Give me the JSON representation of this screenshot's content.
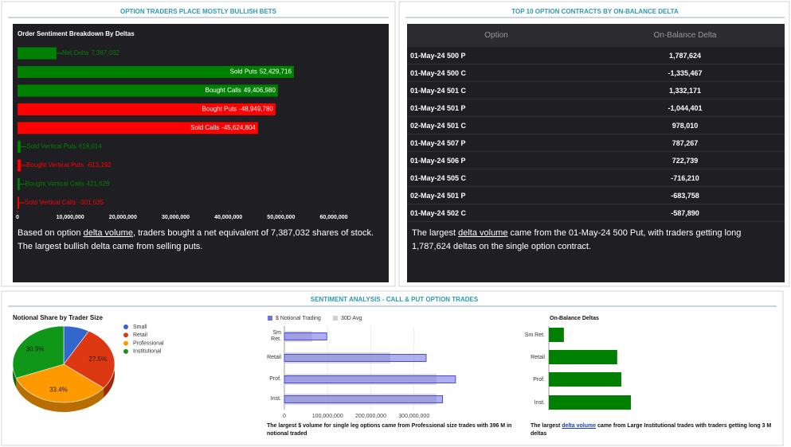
{
  "panel_titles": [
    "OPTION TRADERS PLACE MOSTLY BULLISH BETS",
    "TOP 10 OPTION CONTRACTS BY ON-BALANCE DELTA",
    "SENTIMENT ANALYSIS - CALL & PUT OPTION TRADES"
  ],
  "chart_data": [
    {
      "type": "bar",
      "title": "Order Sentiment Breakdown By Deltas",
      "categories": [
        "Net Delta",
        "Sold Puts",
        "Bought Calls",
        "Bought Puts",
        "Sold Calls",
        "Sold Vertical Puts",
        "Bought Vertical Puts",
        "Bought Vertical Calls",
        "Sold Vertical Calls"
      ],
      "values": [
        7387032,
        52429716,
        49406980,
        -48949780,
        -45624804,
        618014,
        -613192,
        421628,
        -301535
      ],
      "value_labels": [
        "7,387,032",
        "52,429,716",
        "49,406,980",
        "-48,949,780",
        "-45,624,804",
        "618,014",
        "-613,192",
        "421,628",
        "-301,535"
      ],
      "colors": [
        "#008000",
        "#008000",
        "#008000",
        "#ff0000",
        "#ff0000",
        "#008000",
        "#ff0000",
        "#008000",
        "#ff0000"
      ],
      "xlim": [
        0,
        60000000
      ],
      "xticks": [
        0,
        {
          "value": 10000000,
          "label": "10,000,000"
        },
        {
          "value": 20000000,
          "label": "20,000,000"
        },
        {
          "value": 30000000,
          "label": "30,000,000"
        },
        {
          "value": 40000000,
          "label": "40,000,000"
        },
        {
          "value": 50000000,
          "label": "50,000,000"
        },
        {
          "value": 60000000,
          "label": "60,000,000"
        }
      ]
    },
    {
      "type": "pie",
      "title": "Notional Share by Trader Size",
      "categories": [
        "Small",
        "Retail",
        "Professional",
        "Institutional"
      ],
      "values": [
        8.2,
        27.5,
        33.4,
        30.9
      ],
      "value_labels": [
        null,
        "27.5%",
        "33.4%",
        "30.9%"
      ],
      "colors": [
        "#3366cc",
        "#dc3912",
        "#ff9900",
        "#109618"
      ]
    },
    {
      "type": "bar",
      "categories": [
        "Sm Ret.",
        "Retail",
        "Prof.",
        "Inst."
      ],
      "series": [
        {
          "name": "$ Notional Trading",
          "color": "#6f6fe6",
          "values": [
            98000000,
            328000000,
            396000000,
            366000000
          ]
        },
        {
          "name": "30D Avg",
          "color": "#cfcfcf",
          "values": [
            64000000,
            245000000,
            352000000,
            352000000
          ]
        }
      ],
      "xlim": [
        0,
        400000000
      ],
      "xticks": [
        0,
        {
          "value": 100000000,
          "label": "100,000,000"
        },
        {
          "value": 200000000,
          "label": "200,000,000"
        },
        {
          "value": 300000000,
          "label": "300,000,000"
        }
      ]
    },
    {
      "type": "bar",
      "title": "On-Balance Deltas",
      "categories": [
        "Sm Ret.",
        "Retail",
        "Prof.",
        "Inst."
      ],
      "values": [
        550000,
        2500000,
        2650000,
        3000000
      ],
      "color": "#008000",
      "xlim": [
        0,
        3000000
      ]
    }
  ],
  "table": {
    "columns": [
      "Option",
      "On-Balance Delta"
    ],
    "rows": [
      [
        "01-May-24 500 P",
        "1,787,624"
      ],
      [
        "01-May-24 500 C",
        "-1,335,467"
      ],
      [
        "01-May-24 501 C",
        "1,332,171"
      ],
      [
        "01-May-24 501 P",
        "-1,044,401"
      ],
      [
        "02-May-24 501 C",
        "978,010"
      ],
      [
        "01-May-24 507 P",
        "787,267"
      ],
      [
        "01-May-24 506 P",
        "722,739"
      ],
      [
        "01-May-24 505 C",
        "-716,210"
      ],
      [
        "02-May-24 501 P",
        "-683,758"
      ],
      [
        "01-May-24 502 C",
        "-587,890"
      ]
    ]
  },
  "notes": [
    {
      "before": "Based on option ",
      "link": "delta volume",
      "after": ", traders bought a net equivalent of 7,387,032 shares of stock. The largest bullish delta came from selling puts."
    },
    {
      "before": "The largest ",
      "link": "delta volume",
      "after": " came from the 01-May-24 500 Put, with traders getting long 1,787,624 deltas on the single option contract."
    },
    {
      "text": "The largest $ volume for single leg options came from Professional size trades with 396 M in notional traded"
    },
    {
      "before": "The largest ",
      "link": "delta volume",
      "after": " came from Large Institutional trades with traders getting long 3 M deltas"
    }
  ]
}
